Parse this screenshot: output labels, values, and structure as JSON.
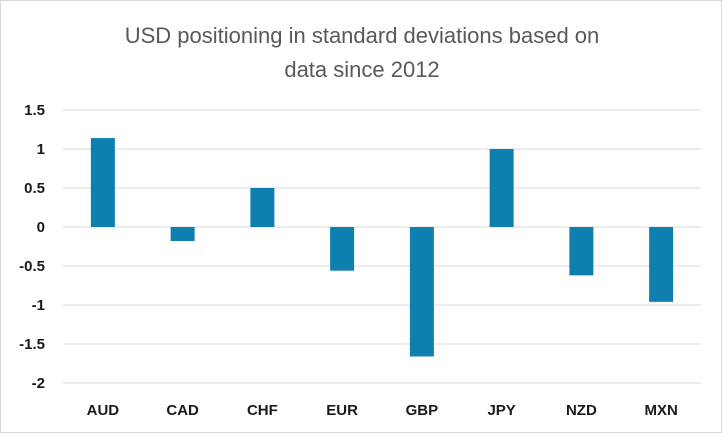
{
  "chart_data": {
    "type": "bar",
    "title_lines": [
      "USD positioning in standard deviations based on",
      "data since 2012"
    ],
    "categories": [
      "AUD",
      "CAD",
      "CHF",
      "EUR",
      "GBP",
      "JPY",
      "NZD",
      "MXN"
    ],
    "values": [
      1.14,
      -0.18,
      0.5,
      -0.56,
      -1.66,
      1.0,
      -0.62,
      -0.96
    ],
    "ylim": [
      -2,
      1.5
    ],
    "yticks": [
      1.5,
      1,
      0.5,
      0,
      -0.5,
      -1,
      -1.5,
      -2
    ],
    "ytick_labels": [
      "1.5",
      "1",
      "0.5",
      "0",
      "-0.5",
      "-1",
      "-1.5",
      "-2"
    ],
    "grid": true,
    "bar_color": "#0f7fb0",
    "grid_color": "#d9d9d9"
  }
}
